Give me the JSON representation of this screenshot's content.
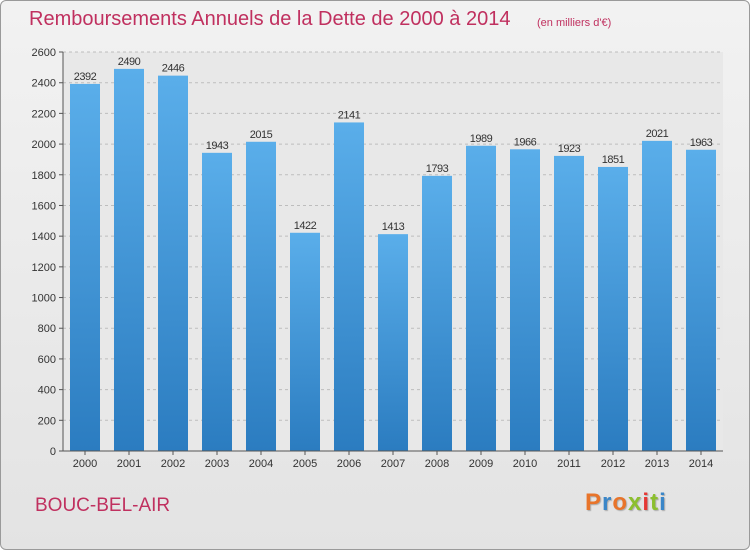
{
  "chart_data": {
    "type": "bar",
    "title": "Remboursements Annuels de la Dette de 2000 à 2014",
    "subtitle": "(en milliers d'€)",
    "categories": [
      "2000",
      "2001",
      "2002",
      "2003",
      "2004",
      "2005",
      "2006",
      "2007",
      "2008",
      "2009",
      "2010",
      "2011",
      "2012",
      "2013",
      "2014"
    ],
    "values": [
      2392,
      2490,
      2446,
      1943,
      2015,
      1422,
      2141,
      1413,
      1793,
      1989,
      1966,
      1923,
      1851,
      2021,
      1963
    ],
    "ylim": [
      0,
      2600
    ],
    "yticks": [
      0,
      200,
      400,
      600,
      800,
      1000,
      1200,
      1400,
      1600,
      1800,
      2000,
      2200,
      2400,
      2600
    ],
    "xlabel": "",
    "ylabel": "",
    "grid": true,
    "legend": "none"
  },
  "footer": {
    "commune": "BOUC-BEL-AIR",
    "brand": "Proxiti"
  },
  "colors": {
    "title": "#c0305f",
    "bar_light": "#5aaeea",
    "bar_dark": "#2b7cc0",
    "logo_letters": [
      "#e8742a",
      "#3a86c8",
      "#e8742a",
      "#8cbf2e",
      "#e53935",
      "#8cbf2e",
      "#3a86c8"
    ]
  }
}
